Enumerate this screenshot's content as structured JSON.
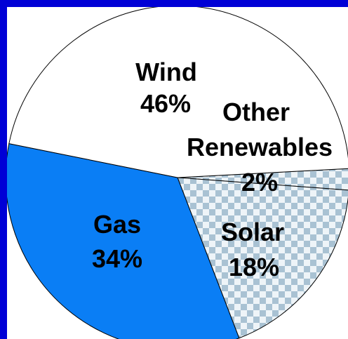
{
  "chart_data": {
    "type": "pie",
    "title": "",
    "slices": [
      {
        "name": "Wind",
        "value": 46,
        "label": "46%",
        "color": "#ffffff",
        "pattern": "none"
      },
      {
        "name": "Other Renewables",
        "value": 2,
        "label": "2%",
        "color": "#c9dce8",
        "pattern": "checker"
      },
      {
        "name": "Solar",
        "value": 18,
        "label": "18%",
        "color": "#c9dce8",
        "pattern": "checker"
      },
      {
        "name": "Gas",
        "value": 34,
        "label": "34%",
        "color": "#0a7ef5",
        "pattern": "none"
      }
    ],
    "background_color": "#0000d6",
    "legend": "none"
  }
}
